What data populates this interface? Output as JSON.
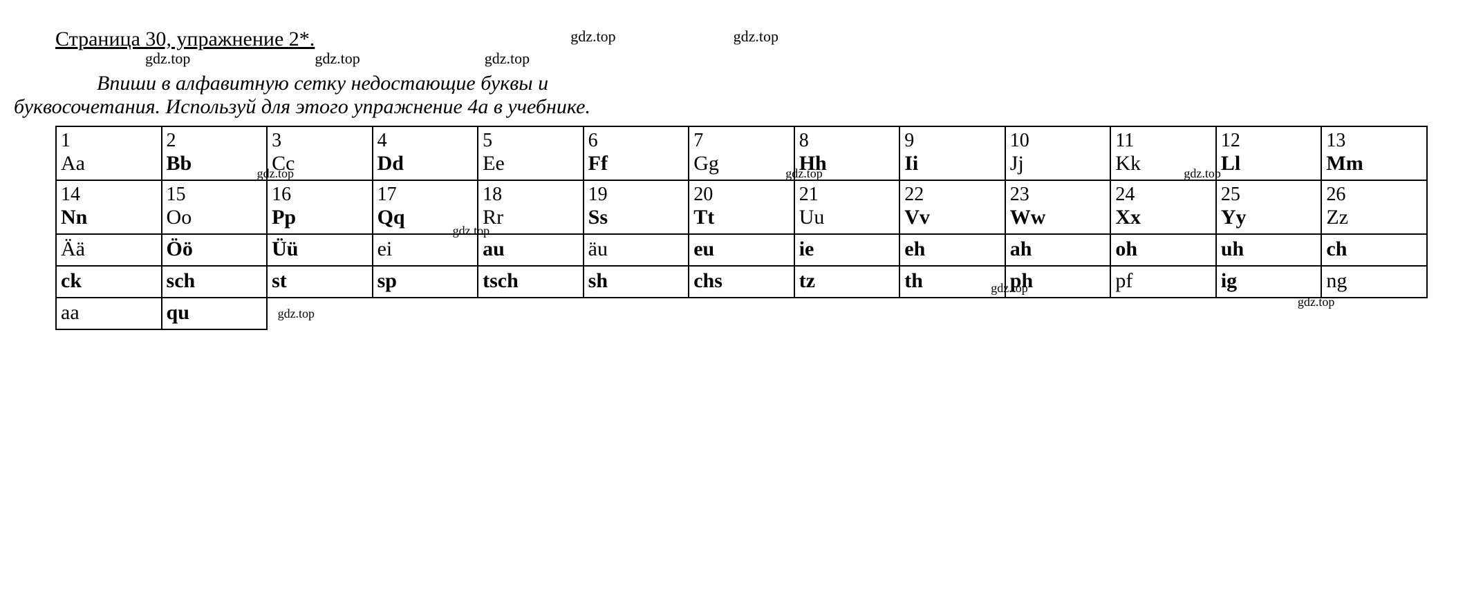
{
  "watermark": "gdz.top",
  "heading": "Страница 30, упражнение 2*.",
  "instruction": {
    "line1": "Впиши в алфавитную сетку недостающие буквы и",
    "line2": "буквосочетания. Используй для этого упражнение 4а в учебнике."
  },
  "table": {
    "border_color": "#000000",
    "border_width": 2,
    "columns": 13,
    "background": "#ffffff",
    "rows": [
      [
        {
          "num": "1",
          "letter": "Aa",
          "bold": false
        },
        {
          "num": "2",
          "letter": "Bb",
          "bold": true
        },
        {
          "num": "3",
          "letter": "Cc",
          "bold": false
        },
        {
          "num": "4",
          "letter": "Dd",
          "bold": true
        },
        {
          "num": "5",
          "letter": "Ee",
          "bold": false
        },
        {
          "num": "6",
          "letter": "Ff",
          "bold": true
        },
        {
          "num": "7",
          "letter": "Gg",
          "bold": false
        },
        {
          "num": "8",
          "letter": "Hh",
          "bold": true
        },
        {
          "num": "9",
          "letter": "Ii",
          "bold": true
        },
        {
          "num": "10",
          "letter": "Jj",
          "bold": false
        },
        {
          "num": "11",
          "letter": "Kk",
          "bold": false
        },
        {
          "num": "12",
          "letter": "Ll",
          "bold": true
        },
        {
          "num": "13",
          "letter": "Mm",
          "bold": true
        }
      ],
      [
        {
          "num": "14",
          "letter": "Nn",
          "bold": true
        },
        {
          "num": "15",
          "letter": "Oo",
          "bold": false
        },
        {
          "num": "16",
          "letter": "Pp",
          "bold": true
        },
        {
          "num": "17",
          "letter": "Qq",
          "bold": true
        },
        {
          "num": "18",
          "letter": "Rr",
          "bold": false
        },
        {
          "num": "19",
          "letter": "Ss",
          "bold": true
        },
        {
          "num": "20",
          "letter": "Tt",
          "bold": true
        },
        {
          "num": "21",
          "letter": "Uu",
          "bold": false
        },
        {
          "num": "22",
          "letter": "Vv",
          "bold": true
        },
        {
          "num": "23",
          "letter": "Ww",
          "bold": true
        },
        {
          "num": "24",
          "letter": "Xx",
          "bold": true
        },
        {
          "num": "25",
          "letter": "Yy",
          "bold": true
        },
        {
          "num": "26",
          "letter": "Zz",
          "bold": false
        }
      ],
      [
        {
          "letter": "Ää",
          "bold": false
        },
        {
          "letter": "Öö",
          "bold": true
        },
        {
          "letter": "Üü",
          "bold": true
        },
        {
          "letter": "ei",
          "bold": false
        },
        {
          "letter": "au",
          "bold": true
        },
        {
          "letter": "äu",
          "bold": false
        },
        {
          "letter": "eu",
          "bold": true
        },
        {
          "letter": "ie",
          "bold": true
        },
        {
          "letter": "eh",
          "bold": true
        },
        {
          "letter": "ah",
          "bold": true
        },
        {
          "letter": "oh",
          "bold": true
        },
        {
          "letter": "uh",
          "bold": true
        },
        {
          "letter": "ch",
          "bold": true
        }
      ],
      [
        {
          "letter": "ck",
          "bold": true
        },
        {
          "letter": "sch",
          "bold": true
        },
        {
          "letter": "st",
          "bold": true
        },
        {
          "letter": "sp",
          "bold": true
        },
        {
          "letter": "tsch",
          "bold": true
        },
        {
          "letter": "sh",
          "bold": true
        },
        {
          "letter": "chs",
          "bold": true
        },
        {
          "letter": "tz",
          "bold": true
        },
        {
          "letter": "th",
          "bold": true
        },
        {
          "letter": "ph",
          "bold": true
        },
        {
          "letter": "pf",
          "bold": false
        },
        {
          "letter": "ig",
          "bold": true
        },
        {
          "letter": "ng",
          "bold": false
        }
      ],
      [
        {
          "letter": "aa",
          "bold": false
        },
        {
          "letter": "qu",
          "bold": true
        }
      ]
    ],
    "watermarks_in_cells": [
      {
        "row": 0,
        "col": 1,
        "pos": "bottom:-2px;right:-40px"
      },
      {
        "row": 0,
        "col": 6,
        "pos": "bottom:-2px;right:-42px"
      },
      {
        "row": 0,
        "col": 10,
        "pos": "bottom:-2px;right:-8px"
      },
      {
        "row": 2,
        "col": 3,
        "pos": "top:-16px;right:-18px"
      },
      {
        "row": 3,
        "col": 8,
        "pos": "bottom:2px;right:-34px"
      },
      {
        "row": 3,
        "col": 11,
        "pos": "bottom:-18px;right:-20px"
      },
      {
        "row": 4,
        "col": 1,
        "pos": "top:12px;right:-70px"
      }
    ]
  }
}
